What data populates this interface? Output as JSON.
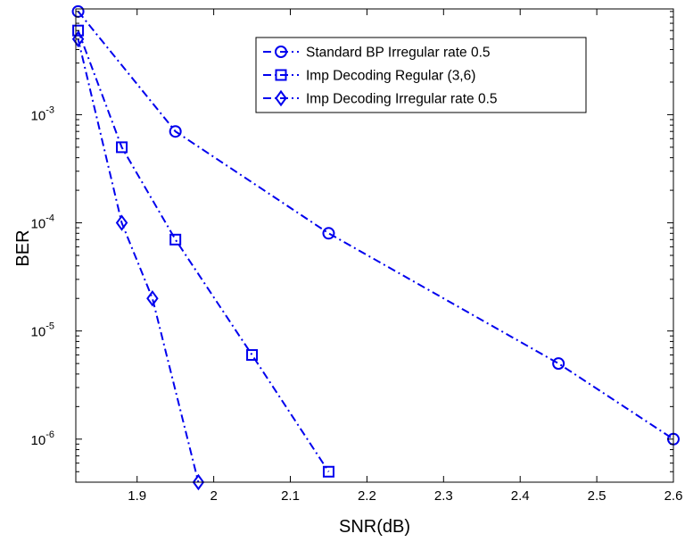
{
  "chart_data": {
    "type": "line",
    "title": "",
    "xlabel": "SNR(dB)",
    "ylabel": "BER",
    "xlim": [
      1.82,
      2.6
    ],
    "ylim": [
      4e-07,
      0.0095
    ],
    "yscale": "log",
    "grid": false,
    "legend_position": "top-right",
    "line_color": "#0000ee",
    "x_ticks": [
      {
        "value": 1.9,
        "label": "1.9"
      },
      {
        "value": 2.0,
        "label": "2"
      },
      {
        "value": 2.1,
        "label": "2.1"
      },
      {
        "value": 2.2,
        "label": "2.2"
      },
      {
        "value": 2.3,
        "label": "2.3"
      },
      {
        "value": 2.4,
        "label": "2.4"
      },
      {
        "value": 2.5,
        "label": "2.5"
      },
      {
        "value": 2.6,
        "label": "2.6"
      }
    ],
    "y_ticks": [
      {
        "value": 0.001,
        "base": "10",
        "exp": "-3"
      },
      {
        "value": 0.0001,
        "base": "10",
        "exp": "-4"
      },
      {
        "value": 1e-05,
        "base": "10",
        "exp": "-5"
      },
      {
        "value": 1e-06,
        "base": "10",
        "exp": "-6"
      }
    ],
    "series": [
      {
        "name": "Standard BP Irregular rate 0.5",
        "marker": "circle",
        "x": [
          1.823,
          1.95,
          2.15,
          2.45,
          2.6
        ],
        "y": [
          0.009,
          0.0007,
          8e-05,
          5e-06,
          1e-06
        ]
      },
      {
        "name": "Imp Decoding Regular (3,6)",
        "marker": "square",
        "x": [
          1.823,
          1.88,
          1.95,
          2.05,
          2.15
        ],
        "y": [
          0.006,
          0.0005,
          7e-05,
          6e-06,
          5e-07
        ]
      },
      {
        "name": "Imp Decoding Irregular rate 0.5",
        "marker": "diamond",
        "x": [
          1.823,
          1.88,
          1.92,
          1.98
        ],
        "y": [
          0.005,
          0.0001,
          2e-05,
          4e-07
        ]
      }
    ]
  }
}
